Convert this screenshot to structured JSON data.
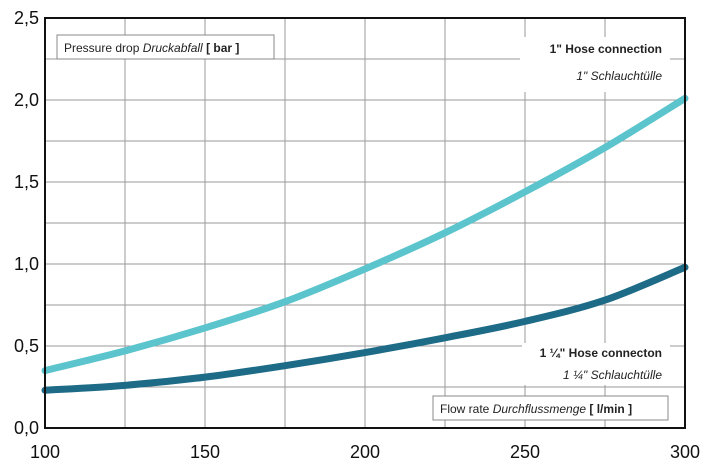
{
  "chart_data": {
    "type": "line",
    "xlim": [
      100,
      300
    ],
    "ylim": [
      0,
      2.5
    ],
    "x_ticks": [
      "100",
      "150",
      "200",
      "250",
      "300"
    ],
    "y_ticks": [
      "0,0",
      "0,5",
      "1,0",
      "1,5",
      "2,0",
      "2,5"
    ],
    "grid": true,
    "ylabel_box": {
      "text": "Pressure drop ",
      "italic": "Druckabfall",
      "unit": " [ bar ]"
    },
    "xlabel_box": {
      "text": "Flow rate ",
      "italic": "Durchflussmenge",
      "unit": " [ l/min ]"
    },
    "series": [
      {
        "name": "1\" Hose connection",
        "name_de": "1\" Schlauchtülle",
        "color": "#5bc4cc",
        "x": [
          100,
          125,
          150,
          175,
          200,
          225,
          250,
          275,
          300
        ],
        "y": [
          0.35,
          0.47,
          0.61,
          0.77,
          0.97,
          1.19,
          1.44,
          1.71,
          2.01
        ]
      },
      {
        "name": "1 ¼\" Hose connecton",
        "name_de": "1 ¼\" Schlauchtülle",
        "color": "#1d6b87",
        "x": [
          100,
          125,
          150,
          175,
          200,
          225,
          250,
          275,
          300
        ],
        "y": [
          0.23,
          0.26,
          0.31,
          0.38,
          0.46,
          0.55,
          0.65,
          0.78,
          0.98
        ]
      }
    ]
  }
}
